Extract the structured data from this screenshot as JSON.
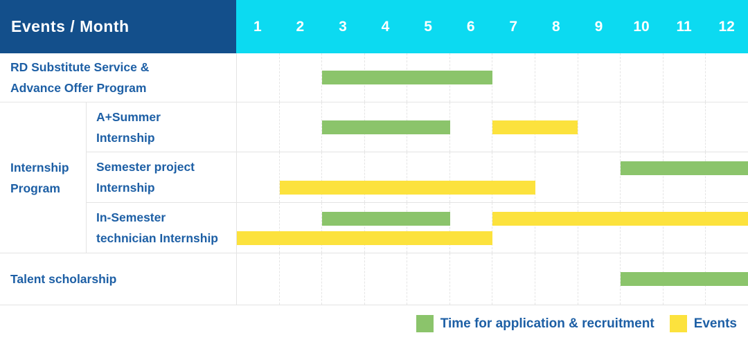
{
  "header": {
    "events_month_label": "Events / Month"
  },
  "colors": {
    "header_bg": "#134F8B",
    "months_bg": "#0CDAF1",
    "label_text": "#1D5FA5",
    "application_green": "#8BC46B",
    "event_yellow": "#FCE23D",
    "grid_border": "#E4E4E4"
  },
  "chart_data": {
    "type": "gantt",
    "title": "Events / Month",
    "months": [
      "1",
      "2",
      "3",
      "4",
      "5",
      "6",
      "7",
      "8",
      "9",
      "10",
      "11",
      "12"
    ],
    "x_range": [
      1,
      12
    ],
    "grid": "dashed-vertical-month-lines",
    "group": {
      "label": "Internship\nProgram",
      "member_row_indexes": [
        1,
        2,
        3
      ]
    },
    "rows": [
      {
        "label": "RD Substitute Service &\nAdvance Offer Program",
        "lanes": 1,
        "bars": [
          {
            "kind": "application",
            "lane": 0,
            "start_month": 3,
            "end_month": 6
          }
        ]
      },
      {
        "label": "A+Summer\nInternship",
        "lanes": 1,
        "bars": [
          {
            "kind": "application",
            "lane": 0,
            "start_month": 3,
            "end_month": 5
          },
          {
            "kind": "event",
            "lane": 0,
            "start_month": 7,
            "end_month": 8
          }
        ]
      },
      {
        "label": "Semester project\nInternship",
        "lanes": 2,
        "bars": [
          {
            "kind": "application",
            "lane": 0,
            "start_month": 10,
            "end_month": 12
          },
          {
            "kind": "event",
            "lane": 1,
            "start_month": 2,
            "end_month": 7
          }
        ]
      },
      {
        "label": "In-Semester\ntechnician Internship",
        "lanes": 2,
        "bars": [
          {
            "kind": "application",
            "lane": 0,
            "start_month": 3,
            "end_month": 5
          },
          {
            "kind": "event",
            "lane": 0,
            "start_month": 7,
            "end_month": 12
          },
          {
            "kind": "event",
            "lane": 1,
            "start_month": 1,
            "end_month": 6
          }
        ]
      },
      {
        "label": "Talent scholarship",
        "lanes": 1,
        "bars": [
          {
            "kind": "application",
            "lane": 0,
            "start_month": 10,
            "end_month": 12
          }
        ]
      }
    ],
    "legend_position": "bottom-right",
    "legend": [
      {
        "kind": "application",
        "label": "Time for application & recruitment"
      },
      {
        "kind": "event",
        "label": "Events"
      }
    ]
  }
}
